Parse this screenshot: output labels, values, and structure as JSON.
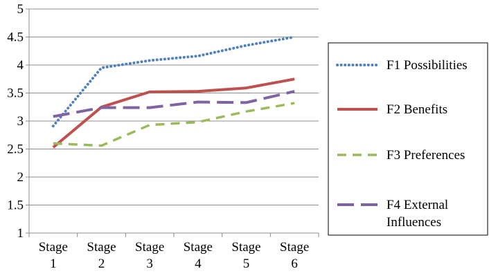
{
  "chart_data": {
    "type": "line",
    "title": "",
    "xlabel": "",
    "ylabel": "",
    "ylim": [
      1,
      5
    ],
    "y_ticks": [
      "1",
      "1.5",
      "2",
      "2.5",
      "3",
      "3.5",
      "4",
      "4.5",
      "5"
    ],
    "categories": [
      [
        "Stage",
        "1"
      ],
      [
        "Stage",
        "2"
      ],
      [
        "Stage",
        "3"
      ],
      [
        "Stage",
        "4"
      ],
      [
        "Stage",
        "5"
      ],
      [
        "Stage",
        "6"
      ]
    ],
    "grid": "horizontal",
    "legend_position": "right",
    "series": [
      {
        "name": [
          "F1 Possibilities"
        ],
        "values": [
          2.91,
          3.95,
          4.08,
          4.16,
          4.35,
          4.5
        ],
        "color": "#4F81BD",
        "dash": "dotted"
      },
      {
        "name": [
          "F2 Benefits"
        ],
        "values": [
          2.53,
          3.25,
          3.52,
          3.53,
          3.59,
          3.75
        ],
        "color": "#C0504D",
        "dash": "solid"
      },
      {
        "name": [
          "F3 Preferences"
        ],
        "values": [
          2.6,
          2.56,
          2.93,
          2.98,
          3.17,
          3.32
        ],
        "color": "#9BBB59",
        "dash": "dashed"
      },
      {
        "name": [
          "F4 External",
          "Influences"
        ],
        "values": [
          3.08,
          3.24,
          3.24,
          3.34,
          3.33,
          3.53
        ],
        "color": "#8064A2",
        "dash": "longdash"
      }
    ]
  }
}
